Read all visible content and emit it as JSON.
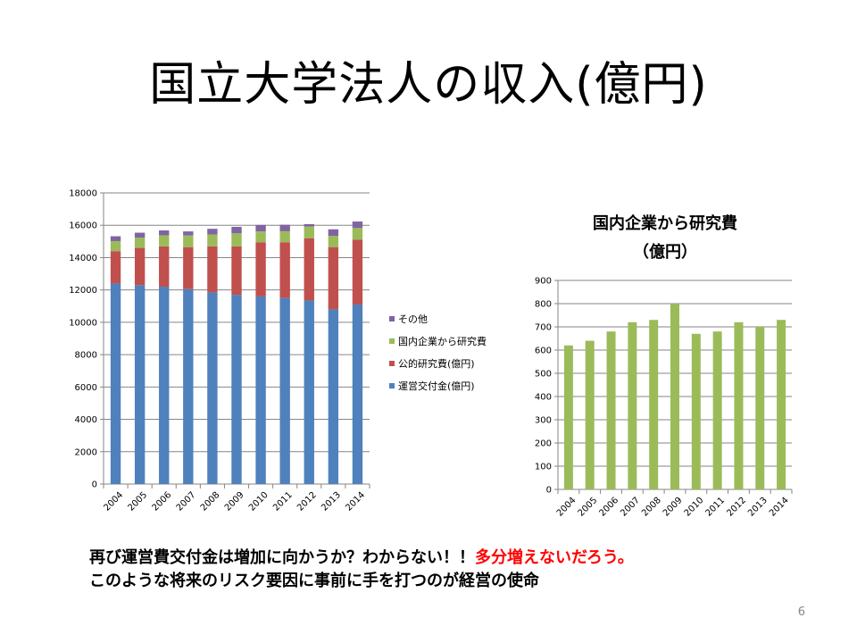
{
  "slide": {
    "title": "国立大学法人の収入(億円)",
    "bottom_line1_black": "再び運営費交付金は増加に向かうか？わからない！！",
    "bottom_line1_red": "多分増えないだろう。",
    "bottom_line2": "このような将来のリスク要因に事前に手を打つのが経営の使命",
    "page_number": "6"
  },
  "colors": {
    "blue": "#4f81bd",
    "red": "#c0504d",
    "green": "#9bbb59",
    "purple": "#8064a2",
    "grid": "#868686",
    "emphasis": "#ff0000"
  },
  "chart_data": [
    {
      "type": "bar",
      "stacked": true,
      "title": "",
      "categories": [
        "2004",
        "2005",
        "2006",
        "2007",
        "2008",
        "2009",
        "2010",
        "2011",
        "2012",
        "2013",
        "2014"
      ],
      "series": [
        {
          "name": "運営交付金(億円)",
          "color": "#4f81bd",
          "values": [
            12400,
            12300,
            12200,
            12050,
            11850,
            11700,
            11600,
            11500,
            11350,
            10800,
            11100
          ]
        },
        {
          "name": "公的研究費(億円)",
          "color": "#c0504d",
          "values": [
            2000,
            2300,
            2500,
            2600,
            2850,
            3000,
            3350,
            3450,
            3850,
            3850,
            4000
          ]
        },
        {
          "name": "国内企業から研究費",
          "color": "#9bbb59",
          "values": [
            620,
            640,
            680,
            720,
            730,
            800,
            670,
            680,
            720,
            700,
            730
          ]
        },
        {
          "name": "その他",
          "color": "#8064a2",
          "values": [
            300,
            300,
            300,
            250,
            350,
            400,
            400,
            400,
            150,
            400,
            400
          ]
        }
      ],
      "ylim": [
        0,
        18000
      ],
      "yticks": [
        0,
        2000,
        4000,
        6000,
        8000,
        10000,
        12000,
        14000,
        16000,
        18000
      ],
      "legend_position": "right",
      "grid": true
    },
    {
      "type": "bar",
      "title": "国内企業から研究費",
      "subtitle": "（億円）",
      "categories": [
        "2004",
        "2005",
        "2006",
        "2007",
        "2008",
        "2009",
        "2010",
        "2011",
        "2012",
        "2013",
        "2014"
      ],
      "series": [
        {
          "name": "国内企業から研究費",
          "color": "#9bbb59",
          "values": [
            620,
            640,
            680,
            720,
            730,
            800,
            670,
            680,
            720,
            700,
            730
          ]
        }
      ],
      "ylim": [
        0,
        900
      ],
      "yticks": [
        0,
        100,
        200,
        300,
        400,
        500,
        600,
        700,
        800,
        900
      ],
      "grid": true
    }
  ]
}
